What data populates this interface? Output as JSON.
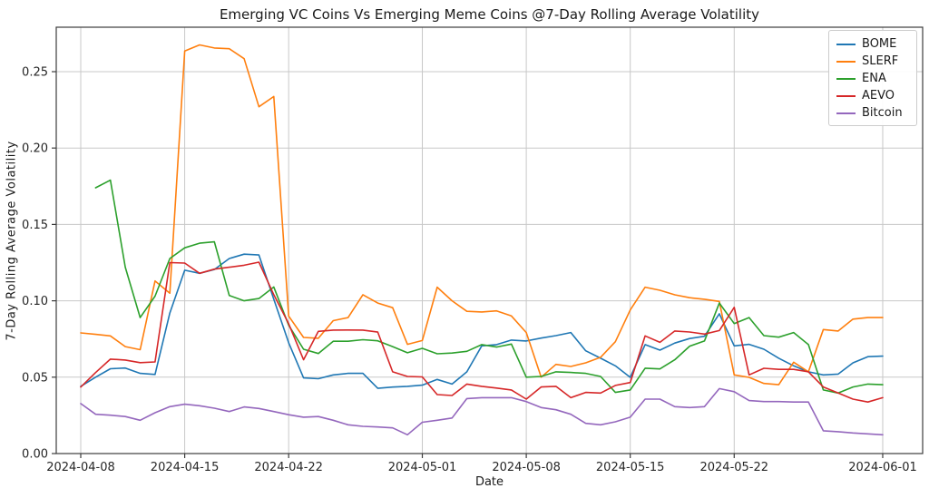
{
  "chart_data": {
    "type": "line",
    "title": "Emerging VC Coins Vs Emerging Meme Coins @7-Day Rolling Average Volatility",
    "xlabel": "Date",
    "ylabel": "7-Day Rolling Average Volatility",
    "ylim": [
      0,
      0.279
    ],
    "grid": true,
    "legend_position": "upper right",
    "x_dates": [
      "2024-04-08",
      "2024-04-09",
      "2024-04-10",
      "2024-04-11",
      "2024-04-12",
      "2024-04-13",
      "2024-04-14",
      "2024-04-15",
      "2024-04-16",
      "2024-04-17",
      "2024-04-18",
      "2024-04-19",
      "2024-04-20",
      "2024-04-21",
      "2024-04-22",
      "2024-04-23",
      "2024-04-24",
      "2024-04-25",
      "2024-04-26",
      "2024-04-27",
      "2024-04-28",
      "2024-04-29",
      "2024-04-30",
      "2024-05-01",
      "2024-05-02",
      "2024-05-03",
      "2024-05-04",
      "2024-05-05",
      "2024-05-06",
      "2024-05-07",
      "2024-05-08",
      "2024-05-09",
      "2024-05-10",
      "2024-05-11",
      "2024-05-12",
      "2024-05-13",
      "2024-05-14",
      "2024-05-15",
      "2024-05-16",
      "2024-05-17",
      "2024-05-18",
      "2024-05-19",
      "2024-05-20",
      "2024-05-21",
      "2024-05-22",
      "2024-05-23",
      "2024-05-24",
      "2024-05-25",
      "2024-05-26",
      "2024-05-27",
      "2024-05-28",
      "2024-05-29",
      "2024-05-30",
      "2024-05-31",
      "2024-06-01"
    ],
    "xticks": [
      {
        "label": "2024-04-08",
        "index": 0
      },
      {
        "label": "2024-04-15",
        "index": 7
      },
      {
        "label": "2024-04-22",
        "index": 14
      },
      {
        "label": "2024-05-01",
        "index": 23
      },
      {
        "label": "2024-05-08",
        "index": 30
      },
      {
        "label": "2024-05-15",
        "index": 37
      },
      {
        "label": "2024-05-22",
        "index": 44
      },
      {
        "label": "2024-06-01",
        "index": 54
      }
    ],
    "yticks": [
      "0.00",
      "0.05",
      "0.10",
      "0.15",
      "0.20",
      "0.25"
    ],
    "series": [
      {
        "name": "BOME",
        "color": "#1f77b4",
        "values": [
          0.044,
          0.05,
          0.0555,
          0.056,
          0.0525,
          0.0518,
          0.092,
          0.12,
          0.118,
          0.1205,
          0.1277,
          0.1305,
          0.13,
          0.101,
          0.0725,
          0.0495,
          0.049,
          0.0515,
          0.0525,
          0.0525,
          0.0427,
          0.0435,
          0.044,
          0.0448,
          0.0485,
          0.0455,
          0.0535,
          0.0705,
          0.0713,
          0.0743,
          0.0737,
          0.0756,
          0.0772,
          0.0792,
          0.0673,
          0.0624,
          0.0574,
          0.0499,
          0.0713,
          0.0677,
          0.0723,
          0.0753,
          0.0768,
          0.0915,
          0.0705,
          0.0715,
          0.0683,
          0.0624,
          0.0574,
          0.0535,
          0.0515,
          0.052,
          0.0594,
          0.0634,
          0.0638
        ]
      },
      {
        "name": "SLERF",
        "color": "#ff7f0e",
        "values": [
          0.079,
          0.078,
          0.077,
          0.07,
          0.068,
          0.113,
          0.105,
          0.2635,
          0.2675,
          0.2655,
          0.265,
          0.2585,
          0.227,
          0.2337,
          0.09,
          0.076,
          0.0755,
          0.087,
          0.089,
          0.104,
          0.0985,
          0.0955,
          0.0715,
          0.074,
          0.1089,
          0.1,
          0.0931,
          0.0927,
          0.0934,
          0.0901,
          0.0792,
          0.05,
          0.0584,
          0.057,
          0.0594,
          0.063,
          0.0732,
          0.094,
          0.1089,
          0.1069,
          0.1039,
          0.102,
          0.101,
          0.0996,
          0.0515,
          0.0499,
          0.0459,
          0.0451,
          0.0598,
          0.0535,
          0.0812,
          0.0802,
          0.088,
          0.089,
          0.089
        ]
      },
      {
        "name": "ENA",
        "color": "#2ca02c",
        "values": [
          null,
          0.174,
          0.179,
          0.122,
          0.089,
          0.103,
          0.1277,
          0.1347,
          0.1377,
          0.1386,
          0.1035,
          0.1,
          0.1015,
          0.109,
          0.084,
          0.0683,
          0.0655,
          0.0735,
          0.0735,
          0.0745,
          0.0738,
          0.07,
          0.066,
          0.0689,
          0.0653,
          0.0658,
          0.0669,
          0.0713,
          0.0697,
          0.0717,
          0.05,
          0.0505,
          0.0535,
          0.0531,
          0.0525,
          0.0505,
          0.04,
          0.0416,
          0.0559,
          0.0554,
          0.0614,
          0.0703,
          0.0737,
          0.0985,
          0.0851,
          0.089,
          0.0772,
          0.0762,
          0.0792,
          0.0713,
          0.0416,
          0.0396,
          0.0436,
          0.0455,
          0.0451
        ]
      },
      {
        "name": "AEVO",
        "color": "#d62728",
        "values": [
          0.0435,
          0.053,
          0.0618,
          0.0612,
          0.0595,
          0.06,
          0.125,
          0.1247,
          0.118,
          0.1207,
          0.122,
          0.1233,
          0.1253,
          0.104,
          0.085,
          0.0614,
          0.08,
          0.0808,
          0.0809,
          0.0808,
          0.0795,
          0.0535,
          0.0505,
          0.0502,
          0.0386,
          0.038,
          0.0455,
          0.044,
          0.0429,
          0.0416,
          0.0356,
          0.0436,
          0.044,
          0.0366,
          0.04,
          0.0396,
          0.0446,
          0.0465,
          0.077,
          0.0728,
          0.0802,
          0.0796,
          0.0782,
          0.0805,
          0.0957,
          0.0515,
          0.0558,
          0.0551,
          0.0551,
          0.0535,
          0.0436,
          0.0396,
          0.0356,
          0.0337,
          0.0366
        ]
      },
      {
        "name": "Bitcoin",
        "color": "#9467bd",
        "values": [
          0.0327,
          0.0257,
          0.0251,
          0.0242,
          0.0218,
          0.0267,
          0.0307,
          0.0323,
          0.0313,
          0.0297,
          0.0275,
          0.0305,
          0.0295,
          0.0275,
          0.0254,
          0.0238,
          0.0242,
          0.0218,
          0.0188,
          0.0178,
          0.0174,
          0.0168,
          0.0123,
          0.0205,
          0.0218,
          0.0233,
          0.036,
          0.0366,
          0.0366,
          0.0366,
          0.034,
          0.0301,
          0.0287,
          0.0257,
          0.0198,
          0.0188,
          0.0208,
          0.0238,
          0.0356,
          0.0356,
          0.0307,
          0.0301,
          0.0307,
          0.0425,
          0.0405,
          0.0347,
          0.034,
          0.034,
          0.0337,
          0.0337,
          0.0149,
          0.0143,
          0.0135,
          0.0129,
          0.0123
        ]
      }
    ]
  }
}
